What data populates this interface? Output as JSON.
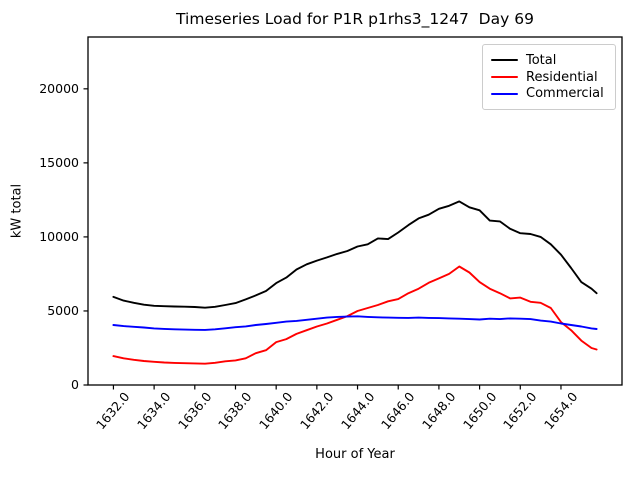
{
  "chart_data": {
    "type": "line",
    "title": "Timeseries Load for P1R p1rhs3_1247  Day 69",
    "xlabel": "Hour of Year",
    "ylabel": "kW total",
    "legend_position": "upper right",
    "grid": false,
    "xlim": [
      1630.75,
      1657.0
    ],
    "ylim": [
      0,
      23500
    ],
    "xticks": [
      1632,
      1634,
      1636,
      1638,
      1640,
      1642,
      1644,
      1646,
      1648,
      1650,
      1652,
      1654
    ],
    "xtick_labels": [
      "1632.0",
      "1634.0",
      "1636.0",
      "1638.0",
      "1640.0",
      "1642.0",
      "1644.0",
      "1646.0",
      "1648.0",
      "1650.0",
      "1652.0",
      "1654.0"
    ],
    "yticks": [
      0,
      5000,
      10000,
      15000,
      20000
    ],
    "ytick_labels": [
      "0",
      "5000",
      "10000",
      "15000",
      "20000"
    ],
    "x": [
      1632.0,
      1632.5,
      1633.0,
      1633.5,
      1634.0,
      1634.5,
      1635.0,
      1635.5,
      1636.0,
      1636.5,
      1637.0,
      1637.5,
      1638.0,
      1638.5,
      1639.0,
      1639.5,
      1640.0,
      1640.5,
      1641.0,
      1641.5,
      1642.0,
      1642.5,
      1643.0,
      1643.5,
      1644.0,
      1644.5,
      1645.0,
      1645.5,
      1646.0,
      1646.5,
      1647.0,
      1647.5,
      1648.0,
      1648.5,
      1649.0,
      1649.5,
      1650.0,
      1650.5,
      1651.0,
      1651.5,
      1652.0,
      1652.5,
      1653.0,
      1653.5,
      1654.0,
      1654.5,
      1655.0,
      1655.5,
      1655.75
    ],
    "series": [
      {
        "name": "Total",
        "color": "#000000",
        "values": [
          5950,
          5700,
          5550,
          5420,
          5350,
          5320,
          5300,
          5290,
          5270,
          5220,
          5280,
          5400,
          5530,
          5780,
          6050,
          6350,
          6880,
          7250,
          7800,
          8150,
          8400,
          8620,
          8850,
          9050,
          9350,
          9500,
          9900,
          9850,
          10300,
          10800,
          11250,
          11500,
          11900,
          12100,
          12400,
          12000,
          11800,
          11100,
          11050,
          10550,
          10250,
          10200,
          10000,
          9500,
          8800,
          7900,
          6950,
          6500,
          6200
        ]
      },
      {
        "name": "Residential",
        "color": "#ff0000",
        "values": [
          1950,
          1800,
          1700,
          1620,
          1570,
          1520,
          1490,
          1470,
          1460,
          1440,
          1500,
          1600,
          1660,
          1800,
          2150,
          2350,
          2900,
          3100,
          3450,
          3700,
          3950,
          4150,
          4400,
          4650,
          5000,
          5200,
          5400,
          5650,
          5800,
          6200,
          6500,
          6900,
          7200,
          7500,
          8000,
          7600,
          6950,
          6500,
          6200,
          5850,
          5900,
          5620,
          5550,
          5200,
          4250,
          3700,
          3000,
          2500,
          2400
        ]
      },
      {
        "name": "Commercial",
        "color": "#0000ff",
        "values": [
          4050,
          3980,
          3930,
          3880,
          3820,
          3790,
          3760,
          3740,
          3730,
          3720,
          3760,
          3830,
          3900,
          3960,
          4050,
          4120,
          4200,
          4280,
          4330,
          4400,
          4480,
          4550,
          4600,
          4620,
          4640,
          4600,
          4570,
          4550,
          4540,
          4530,
          4550,
          4530,
          4520,
          4500,
          4480,
          4450,
          4420,
          4480,
          4450,
          4500,
          4480,
          4450,
          4350,
          4280,
          4150,
          4050,
          3950,
          3820,
          3780
        ]
      }
    ]
  }
}
